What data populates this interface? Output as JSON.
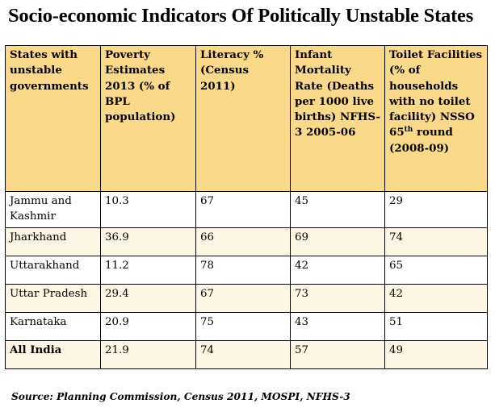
{
  "title": "Socio-economic Indicators Of Politically Unstable States",
  "headers": [
    "States with unstable governments",
    "Poverty Estimates 2013 (% of BPL population)",
    "Literacy % (Census 2011)",
    "Infant Mortality Rate (Deaths per 1000 live births) NFHS-3 2005-06",
    "Toilet Facilities (% of households with no toilet facility) NSSO 65"
  ],
  "header_sup": "th",
  "header_tail": " round (2008-09)",
  "rows": [
    {
      "state": "Jammu and Kashmir",
      "poverty": "10.3",
      "literacy": "67",
      "imr": "45",
      "toilet": "29"
    },
    {
      "state": "Jharkhand",
      "poverty": "36.9",
      "literacy": "66",
      "imr": "69",
      "toilet": "74"
    },
    {
      "state": "Uttarakhand",
      "poverty": "11.2",
      "literacy": "78",
      "imr": "42",
      "toilet": "65"
    },
    {
      "state": "Uttar Pradesh",
      "poverty": "29.4",
      "literacy": "67",
      "imr": "73",
      "toilet": "42"
    },
    {
      "state": "Karnataka",
      "poverty": "20.9",
      "literacy": "75",
      "imr": "43",
      "toilet": "51"
    },
    {
      "state": "All India",
      "poverty": "21.9",
      "literacy": "74",
      "imr": "57",
      "toilet": "49"
    }
  ],
  "source": "Source: Planning Commission, Census 2011, MOSPI, NFHS-3",
  "colors": {
    "header_bg": "#fad98a",
    "alt_row_bg": "#fdf6e4",
    "row_bg": "#ffffff"
  }
}
